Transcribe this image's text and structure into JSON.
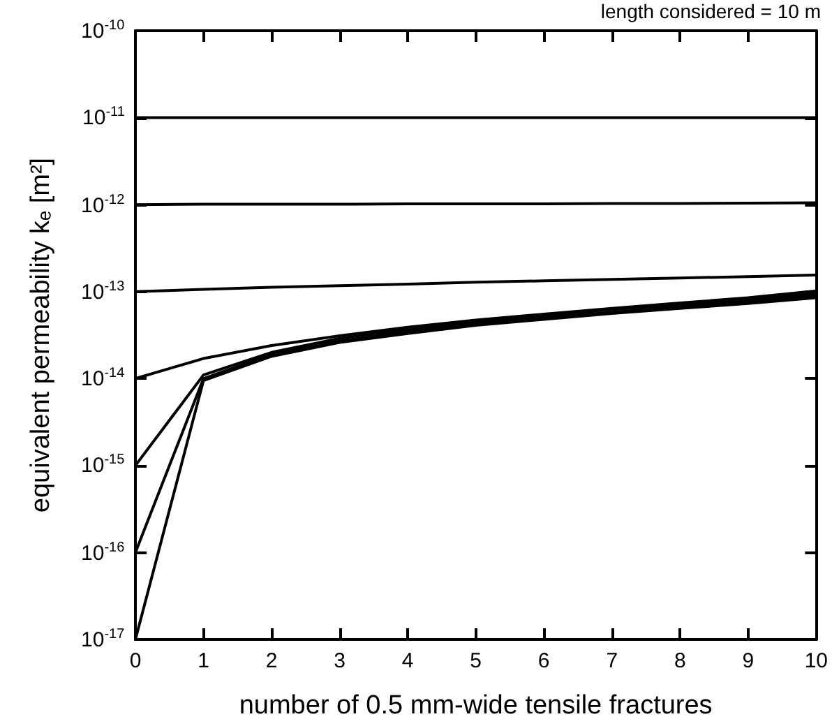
{
  "chart_data": {
    "type": "line",
    "xlabel": "number of 0.5 mm-wide tensile fractures",
    "ylabel": "equivalent permeability kₑ [m²]",
    "annotations": [
      "length considered = 10 m"
    ],
    "x": [
      0,
      1,
      2,
      3,
      4,
      5,
      6,
      7,
      8,
      9,
      10
    ],
    "log": "y",
    "grid": false,
    "marker": "none",
    "line_style": "solid",
    "xlim": [
      0,
      10
    ],
    "xticks": [
      0,
      1,
      2,
      3,
      4,
      5,
      6,
      7,
      8,
      9,
      10
    ],
    "ylim": [
      1e-17,
      1e-10
    ],
    "yticks": [
      {
        "value": 1e-17,
        "label": "10$^{-17}$"
      },
      {
        "value": 1e-16,
        "label": "10$^{-16}$"
      },
      {
        "value": 1e-15,
        "label": "10$^{-15}$"
      },
      {
        "value": 1e-14,
        "label": "10$^{-14}$"
      },
      {
        "value": 1e-13,
        "label": "10$^{-13}$"
      },
      {
        "value": 1e-12,
        "label": "10$^{-12}$"
      },
      {
        "value": 1e-11,
        "label": "10$^{-11}$"
      },
      {
        "value": 1e-10,
        "label": "10$^{-10}$"
      }
    ],
    "series": [
      {
        "color": "#000000",
        "values": [
          1e-11,
          1e-11,
          1e-11,
          1e-11,
          1e-11,
          1e-11,
          1e-11,
          1e-11,
          1e-11,
          1e-11,
          1e-11
        ]
      },
      {
        "color": "#000000",
        "values": [
          1e-12,
          1.01e-12,
          1.01e-12,
          1.01e-12,
          1.02e-12,
          1.02e-12,
          1.02e-12,
          1.03e-12,
          1.03e-12,
          1.04e-12,
          1.05e-12
        ]
      },
      {
        "color": "#000000",
        "values": [
          1e-13,
          1.06e-13,
          1.12e-13,
          1.17e-13,
          1.22e-13,
          1.28e-13,
          1.33e-13,
          1.38e-13,
          1.43e-13,
          1.49e-13,
          1.55e-13
        ]
      },
      {
        "color": "#000000",
        "values": [
          1e-14,
          1.7e-14,
          2.4e-14,
          3.1e-14,
          3.9e-14,
          4.7e-14,
          5.5e-14,
          6.4e-14,
          7.4e-14,
          8.5e-14,
          1.02e-13
        ]
      },
      {
        "color": "#000000",
        "values": [
          1e-15,
          1.1e-14,
          2e-14,
          2.9e-14,
          3.7e-14,
          4.5e-14,
          5.3e-14,
          6.2e-14,
          7.1e-14,
          8.1e-14,
          9.6e-14
        ]
      },
      {
        "color": "#000000",
        "values": [
          1e-16,
          1e-14,
          1.9e-14,
          2.7e-14,
          3.5e-14,
          4.3e-14,
          5e-14,
          5.8e-14,
          6.7e-14,
          7.7e-14,
          9e-14
        ]
      },
      {
        "color": "#000000",
        "values": [
          1e-17,
          9.5e-15,
          1.8e-14,
          2.6e-14,
          3.3e-14,
          4.1e-14,
          4.8e-14,
          5.6e-14,
          6.4e-14,
          7.3e-14,
          8.5e-14
        ]
      }
    ]
  }
}
